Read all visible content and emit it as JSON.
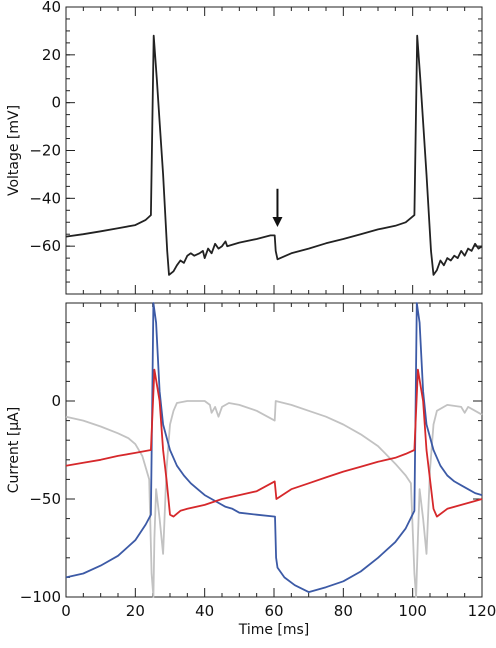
{
  "chart_data": [
    {
      "type": "line",
      "ylabel": "Voltage [mV]",
      "xlim": [
        0,
        120
      ],
      "ylim": [
        -80,
        40
      ],
      "x_ticks": [
        0,
        20,
        40,
        60,
        80,
        100,
        120
      ],
      "y_ticks": [
        40,
        20,
        0,
        -20,
        -40,
        -60
      ],
      "grid": false,
      "colors": {
        "trace": "#222222"
      },
      "series": [
        {
          "color": "#222222",
          "points": [
            [
              0,
              -56
            ],
            [
              5,
              -55
            ],
            [
              10,
              -53.8
            ],
            [
              15,
              -52.5
            ],
            [
              20,
              -51.2
            ],
            [
              23,
              -49
            ],
            [
              24.5,
              -47
            ],
            [
              25.3,
              28
            ],
            [
              26.2,
              10
            ],
            [
              27,
              -8
            ],
            [
              28,
              -30
            ],
            [
              29.2,
              -62
            ],
            [
              29.7,
              -72
            ],
            [
              31,
              -70.5
            ],
            [
              32,
              -68
            ],
            [
              33,
              -66
            ],
            [
              34,
              -67
            ],
            [
              35,
              -64
            ],
            [
              36,
              -63
            ],
            [
              37,
              -64
            ],
            [
              38.5,
              -63
            ],
            [
              39.5,
              -62
            ],
            [
              40,
              -65
            ],
            [
              41,
              -61
            ],
            [
              42,
              -63
            ],
            [
              43,
              -59
            ],
            [
              44,
              -61
            ],
            [
              45,
              -60
            ],
            [
              46,
              -58
            ],
            [
              46.5,
              -60
            ],
            [
              50,
              -58.5
            ],
            [
              55,
              -57
            ],
            [
              59,
              -55.5
            ],
            [
              60.2,
              -55.5
            ],
            [
              60.5,
              -62
            ],
            [
              61,
              -65.5
            ],
            [
              65,
              -63
            ],
            [
              70,
              -61
            ],
            [
              75,
              -58.8
            ],
            [
              80,
              -57
            ],
            [
              85,
              -55
            ],
            [
              90,
              -53
            ],
            [
              95,
              -51.5
            ],
            [
              98,
              -50
            ],
            [
              100.5,
              -47
            ],
            [
              101.3,
              28
            ],
            [
              102.2,
              10
            ],
            [
              103,
              -8
            ],
            [
              104,
              -30
            ],
            [
              105.3,
              -62
            ],
            [
              106,
              -72
            ],
            [
              107,
              -70
            ],
            [
              108,
              -66
            ],
            [
              109,
              -68
            ],
            [
              110,
              -65
            ],
            [
              111,
              -66
            ],
            [
              112,
              -64
            ],
            [
              113,
              -65
            ],
            [
              114,
              -62
            ],
            [
              115,
              -64
            ],
            [
              116,
              -61
            ],
            [
              117,
              -62
            ],
            [
              118,
              -59
            ],
            [
              119,
              -61
            ],
            [
              120,
              -60
            ]
          ]
        }
      ],
      "annotations": [
        {
          "type": "arrow",
          "x": 61,
          "y_tip": -52,
          "y_tail": -36
        }
      ]
    },
    {
      "type": "line",
      "xlabel": "Time [ms]",
      "ylabel": "Current [μA]",
      "xlim": [
        0,
        120
      ],
      "ylim": [
        -100,
        50
      ],
      "x_ticks": [
        0,
        20,
        40,
        60,
        80,
        100,
        120
      ],
      "y_ticks": [
        0,
        -50,
        -100
      ],
      "grid": false,
      "colors": {
        "blue": "#3c5aa6",
        "red": "#d6282b",
        "gray": "#c2c2c2"
      },
      "series": [
        {
          "color": "#3c5aa6",
          "points": [
            [
              0,
              -90
            ],
            [
              5,
              -88
            ],
            [
              10,
              -84
            ],
            [
              15,
              -79
            ],
            [
              20,
              -71
            ],
            [
              23,
              -63
            ],
            [
              24.5,
              -58
            ],
            [
              25.2,
              50
            ],
            [
              26,
              40
            ],
            [
              27,
              5
            ],
            [
              28,
              -12
            ],
            [
              30,
              -25
            ],
            [
              32,
              -33
            ],
            [
              34,
              -38
            ],
            [
              36,
              -42
            ],
            [
              38,
              -45
            ],
            [
              40,
              -48
            ],
            [
              42,
              -50
            ],
            [
              44,
              -52
            ],
            [
              46,
              -54
            ],
            [
              48,
              -55
            ],
            [
              50,
              -57
            ],
            [
              55,
              -58
            ],
            [
              60.3,
              -59
            ],
            [
              60.6,
              -80
            ],
            [
              61,
              -85
            ],
            [
              63,
              -90
            ],
            [
              66,
              -94
            ],
            [
              70,
              -97.5
            ],
            [
              75,
              -95
            ],
            [
              80,
              -92
            ],
            [
              85,
              -87
            ],
            [
              90,
              -80
            ],
            [
              95,
              -72
            ],
            [
              98,
              -65
            ],
            [
              100.5,
              -56
            ],
            [
              101.2,
              50
            ],
            [
              102,
              40
            ],
            [
              103,
              5
            ],
            [
              104,
              -12
            ],
            [
              106,
              -25
            ],
            [
              108,
              -33
            ],
            [
              110,
              -38
            ],
            [
              112,
              -41
            ],
            [
              114,
              -43
            ],
            [
              116,
              -45
            ],
            [
              118,
              -47
            ],
            [
              120,
              -48
            ]
          ]
        },
        {
          "color": "#d6282b",
          "points": [
            [
              0,
              -33
            ],
            [
              5,
              -31.5
            ],
            [
              10,
              -30
            ],
            [
              15,
              -28
            ],
            [
              20,
              -26.5
            ],
            [
              24.5,
              -25
            ],
            [
              25.5,
              16
            ],
            [
              27,
              0
            ],
            [
              28,
              -25
            ],
            [
              29,
              -40
            ],
            [
              30,
              -58
            ],
            [
              31,
              -59
            ],
            [
              33,
              -56
            ],
            [
              35,
              -55
            ],
            [
              40,
              -53
            ],
            [
              45,
              -50
            ],
            [
              50,
              -48
            ],
            [
              55,
              -46
            ],
            [
              60.2,
              -41
            ],
            [
              60.7,
              -50
            ],
            [
              65,
              -45
            ],
            [
              70,
              -42
            ],
            [
              75,
              -39
            ],
            [
              80,
              -36
            ],
            [
              85,
              -33.5
            ],
            [
              90,
              -31
            ],
            [
              95,
              -29
            ],
            [
              98,
              -27
            ],
            [
              100.5,
              -25
            ],
            [
              101.5,
              16
            ],
            [
              103,
              0
            ],
            [
              104,
              -25
            ],
            [
              105,
              -40
            ],
            [
              106,
              -55
            ],
            [
              107,
              -59
            ],
            [
              110,
              -55
            ],
            [
              114,
              -53
            ],
            [
              118,
              -51
            ],
            [
              120,
              -50
            ]
          ]
        },
        {
          "color": "#c2c2c2",
          "points": [
            [
              0,
              -8
            ],
            [
              5,
              -10
            ],
            [
              10,
              -13
            ],
            [
              15,
              -16.5
            ],
            [
              18,
              -19
            ],
            [
              20,
              -22
            ],
            [
              22,
              -28
            ],
            [
              24,
              -40
            ],
            [
              24.7,
              -88
            ],
            [
              25.2,
              -100
            ],
            [
              25.5,
              -70
            ],
            [
              26,
              -45
            ],
            [
              27,
              -60
            ],
            [
              28,
              -78
            ],
            [
              29,
              -35
            ],
            [
              30,
              -12
            ],
            [
              31,
              -5
            ],
            [
              32,
              -1
            ],
            [
              35,
              0
            ],
            [
              40,
              0
            ],
            [
              41.5,
              -2
            ],
            [
              42,
              -6
            ],
            [
              43,
              -3
            ],
            [
              44,
              -8
            ],
            [
              45,
              -3
            ],
            [
              47,
              -1
            ],
            [
              50,
              -2
            ],
            [
              55,
              -5
            ],
            [
              60.2,
              -10
            ],
            [
              60.5,
              0
            ],
            [
              65,
              -2
            ],
            [
              70,
              -5
            ],
            [
              75,
              -8
            ],
            [
              80,
              -12
            ],
            [
              85,
              -17
            ],
            [
              90,
              -23
            ],
            [
              95,
              -32
            ],
            [
              98,
              -38
            ],
            [
              99.5,
              -42
            ],
            [
              100.5,
              -88
            ],
            [
              101,
              -100
            ],
            [
              101.5,
              -70
            ],
            [
              102,
              -45
            ],
            [
              103,
              -60
            ],
            [
              104,
              -78
            ],
            [
              105,
              -35
            ],
            [
              106,
              -12
            ],
            [
              107,
              -5
            ],
            [
              110,
              -2
            ],
            [
              114,
              -3
            ],
            [
              115,
              -6
            ],
            [
              116,
              -3
            ],
            [
              118,
              -5
            ],
            [
              120,
              -7
            ]
          ]
        }
      ]
    }
  ]
}
